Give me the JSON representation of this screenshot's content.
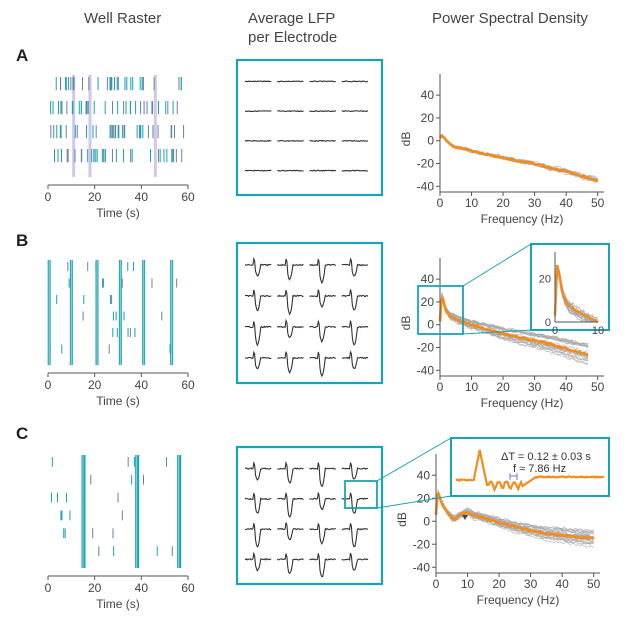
{
  "headers": {
    "raster": "Well Raster",
    "lfp_line1": "Average LFP",
    "lfp_line2": "per Electrode",
    "psd": "Power Spectral Density"
  },
  "panels": [
    "A",
    "B",
    "C"
  ],
  "colors": {
    "teal": "#1aa3b2",
    "orange": "#f28c1e",
    "gray_trace": "#a8a8a8",
    "burst_highlight": "#c7b8e8",
    "lfp_trace": "#333333"
  },
  "inset_c": {
    "delta_t": "ΔT = 0.12 ± 0.03 s",
    "freq": "f ≈ 7.86 Hz"
  },
  "chart_data": [
    {
      "panel": "A",
      "type": "scatter",
      "title": "Well Raster",
      "xlabel": "Time (s)",
      "ylabel": "",
      "xlim": [
        0,
        60
      ],
      "xticks": [
        0,
        20,
        40,
        60
      ],
      "highlight_bursts_s": [
        11,
        18,
        46
      ],
      "description": "sparse asynchronous spikes across 4 electrode rows"
    },
    {
      "panel": "A",
      "type": "line",
      "title": "Power Spectral Density",
      "xlabel": "Frequency (Hz)",
      "ylabel": "dB",
      "xlim": [
        0,
        52
      ],
      "ylim": [
        -45,
        55
      ],
      "xticks": [
        0,
        10,
        20,
        30,
        40,
        50
      ],
      "yticks": [
        -40,
        -20,
        0,
        20,
        40
      ],
      "series": [
        {
          "x": [
            0,
            0.5,
            1,
            2,
            3,
            5,
            8,
            10,
            15,
            20,
            25,
            30,
            35,
            40,
            45,
            50
          ],
          "y": [
            2,
            5,
            4,
            0,
            -3,
            -6,
            -7,
            -9,
            -12,
            -15,
            -18,
            -20,
            -24,
            -27,
            -31,
            -35
          ]
        }
      ]
    },
    {
      "panel": "B",
      "type": "scatter",
      "title": "Well Raster",
      "xlabel": "Time (s)",
      "ylabel": "",
      "xlim": [
        0,
        60
      ],
      "xticks": [
        0,
        20,
        40,
        60
      ],
      "network_bursts_s": [
        0.5,
        10,
        21,
        31,
        41,
        53
      ]
    },
    {
      "panel": "B",
      "type": "line",
      "title": "Power Spectral Density",
      "xlabel": "Frequency (Hz)",
      "ylabel": "dB",
      "xlim": [
        0,
        52
      ],
      "ylim": [
        -45,
        55
      ],
      "xticks": [
        0,
        10,
        20,
        30,
        40,
        50
      ],
      "yticks": [
        -40,
        -20,
        0,
        20,
        40
      ],
      "series": [
        {
          "x": [
            0,
            0.5,
            1,
            1.5,
            2,
            3,
            5,
            8,
            10,
            15,
            20,
            25,
            30,
            35,
            40,
            47
          ],
          "y": [
            3,
            26,
            22,
            16,
            12,
            8,
            5,
            2,
            0,
            -4,
            -8,
            -11,
            -14,
            -17,
            -21,
            -26
          ]
        }
      ],
      "inset": {
        "xlim": [
          0,
          10
        ],
        "ylim": [
          0,
          32
        ],
        "xticks": [
          0,
          10
        ],
        "yticks": [
          0,
          20
        ]
      }
    },
    {
      "panel": "C",
      "type": "scatter",
      "title": "Well Raster",
      "xlabel": "Time (s)",
      "ylabel": "",
      "xlim": [
        0,
        60
      ],
      "xticks": [
        0,
        20,
        40,
        60
      ],
      "network_bursts_s": [
        15,
        38,
        56
      ]
    },
    {
      "panel": "C",
      "type": "line",
      "title": "Power Spectral Density",
      "xlabel": "Frequency (Hz)",
      "ylabel": "dB",
      "xlim": [
        0,
        52
      ],
      "ylim": [
        -45,
        55
      ],
      "xticks": [
        0,
        10,
        20,
        30,
        40,
        50
      ],
      "yticks": [
        -40,
        -20,
        0,
        20,
        40
      ],
      "series": [
        {
          "x": [
            0,
            0.5,
            1,
            2,
            3,
            5,
            6,
            7,
            8,
            10,
            12,
            15,
            20,
            25,
            30,
            35,
            40,
            45,
            50
          ],
          "y": [
            5,
            26,
            22,
            15,
            10,
            3,
            2,
            4,
            6,
            8,
            5,
            3,
            -1,
            -5,
            -8,
            -11,
            -12,
            -14,
            -15
          ]
        }
      ]
    }
  ]
}
